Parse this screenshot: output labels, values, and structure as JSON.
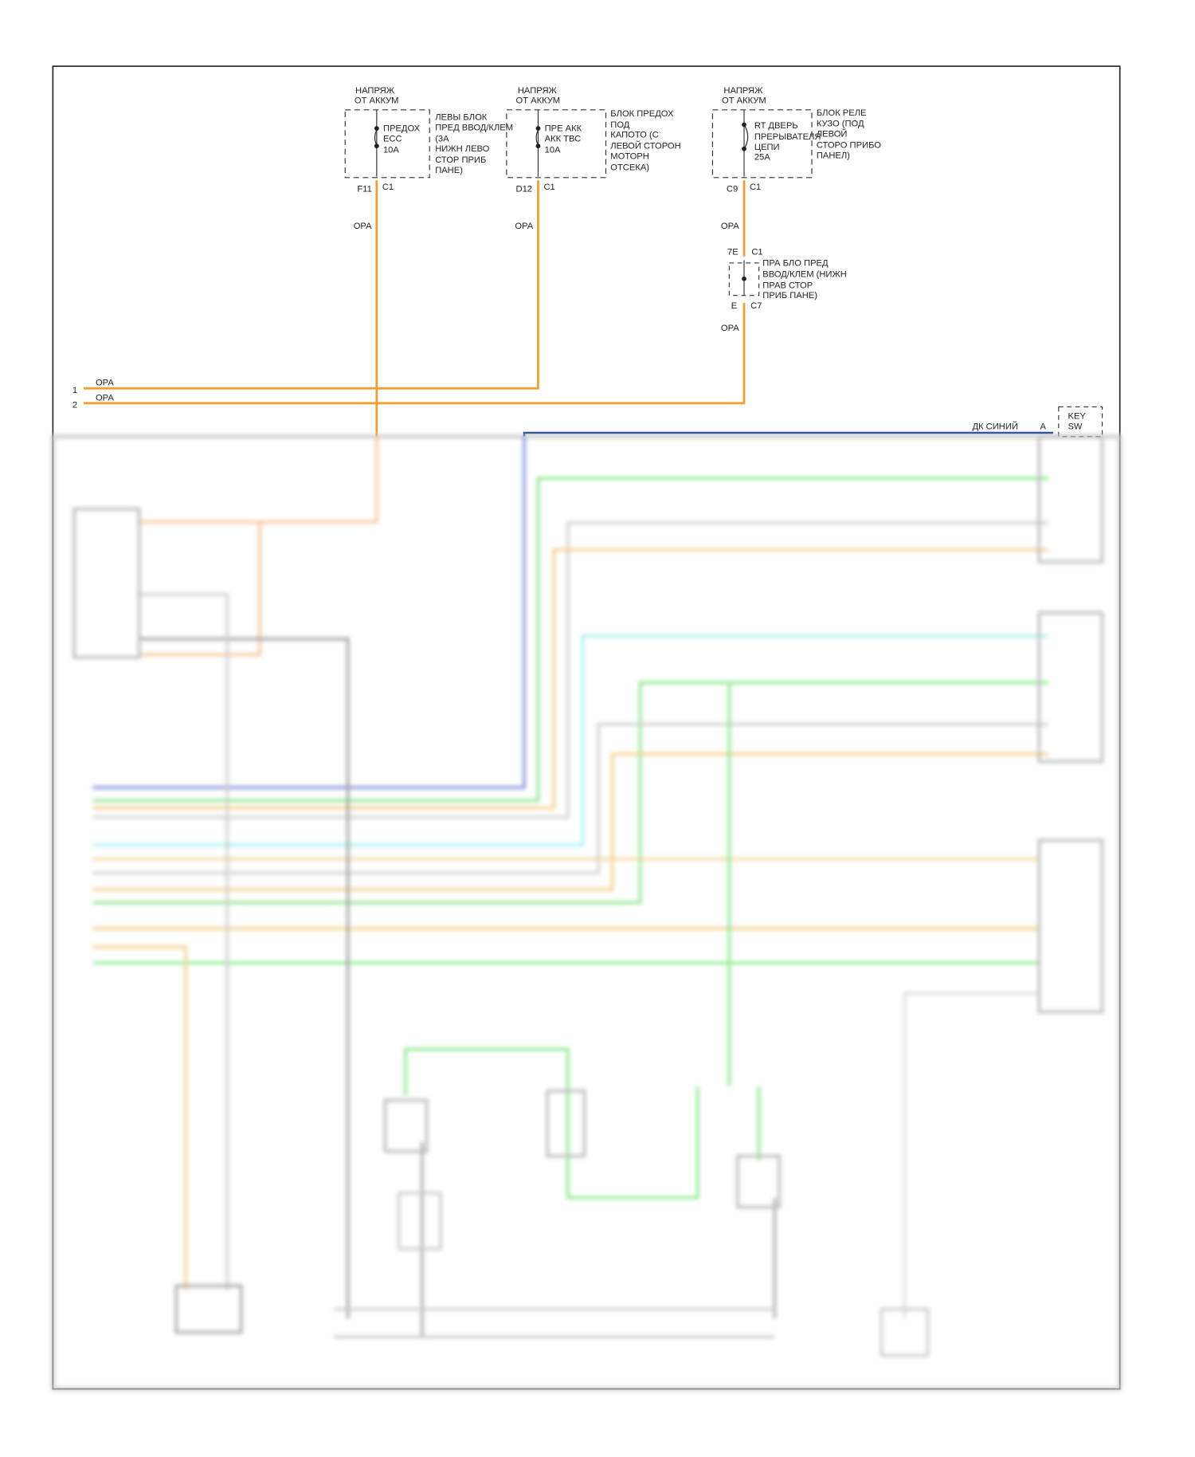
{
  "colors": {
    "orange": "#f0a030",
    "blue": "#1a3f9a",
    "green": "#8ee88e",
    "cyan": "#a8f0f4",
    "gray": "#c8c8c8",
    "light_orange": "#f6d08a"
  },
  "fuses": [
    {
      "source": [
        "НАПРЯЖ",
        "ОТ АККУМ"
      ],
      "fuse": [
        "ПРЕДОХ",
        "ЕСС",
        "10А"
      ],
      "location": [
        "ЛЕВЫ БЛОК",
        "ПРЕД ВВОД/КЛЕМ",
        "(3А",
        "НИЖН ЛЕВО",
        "СТОР ПРИБ",
        "ПАНЕ)"
      ],
      "pin": "F11",
      "connector": "C1",
      "wire": "ОРА"
    },
    {
      "source": [
        "НАПРЯЖ",
        "ОТ АККУМ"
      ],
      "fuse": [
        "ПРЕ АКК",
        "АКК ТВС",
        "10А"
      ],
      "location": [
        "БЛОК ПРЕДОХ",
        "ПОД",
        "КАПОТО (С",
        "ЛЕВОЙ СТОРОН",
        "МОТОРН",
        "ОТСЕКА)"
      ],
      "pin": "D12",
      "connector": "C1",
      "wire": "ОРА"
    },
    {
      "source": [
        "НАПРЯЖ",
        "ОТ АККУМ"
      ],
      "fuse": [
        "RT ДВЕРЬ",
        "ПРЕРЫВАТЕЛЯ",
        "ЦЕПИ",
        "25А"
      ],
      "location": [
        "БЛОК РЕЛЕ",
        "КУЗО (ПОД",
        "ЛЕВОЙ",
        "СТОРО ПРИБО",
        "ПАНЕЛ)"
      ],
      "pin": "C9",
      "connector": "C1",
      "wire": "ОРА"
    }
  ],
  "junction": {
    "pin_in": "7E",
    "conn_in": "C1",
    "label": [
      "ПРА БЛО ПРЕД",
      "ВВОД/КЛЕМ (НИЖН",
      "ПРАВ СТОР",
      "ПРИБ ПАНЕ)"
    ],
    "pin_out": "E",
    "conn_out": "C7",
    "wire": "ОРА"
  },
  "offpage": [
    {
      "num": "1",
      "wire": "ОРА"
    },
    {
      "num": "2",
      "wire": "ОРА"
    }
  ],
  "key_switch": {
    "wire": "ДК СИНИЙ",
    "pin": "A",
    "label": [
      "KEY",
      "SW"
    ]
  }
}
